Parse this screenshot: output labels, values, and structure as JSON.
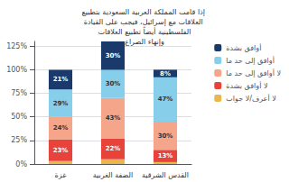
{
  "chart_data": {
    "type": "bar",
    "title": "إذا قامت المملكة العربية السعودية بتطبيع العلاقات مع إسرائيل، فيجب على القيادة الفلسطينية أيضاً تطبيع العلاقات\nوإنهاء الصراع",
    "categories": [
      "غزة",
      "الضفة الغربية",
      "القدس الشرقية"
    ],
    "series": [
      {
        "name": "لا أعرف/لا جواب",
        "color": "#E8B84B",
        "values": [
          3,
          5,
          2
        ]
      },
      {
        "name": "لا أوافق بشدة",
        "color": "#E8433A",
        "values": [
          23,
          22,
          13
        ],
        "value_labels": [
          "23%",
          "22%",
          "13%"
        ]
      },
      {
        "name": "لا أوافق إلى حد ما",
        "color": "#F4A58A",
        "values": [
          24,
          43,
          30
        ],
        "value_labels": [
          "24%",
          "43%",
          "30%"
        ]
      },
      {
        "name": "أوافق إلى حد ما",
        "color": "#87CEEB",
        "values": [
          29,
          30,
          47
        ],
        "value_labels": [
          "29%",
          "30%",
          "47%"
        ]
      },
      {
        "name": "أوافق بشدة",
        "color": "#1A3A6B",
        "values": [
          21,
          30,
          8
        ],
        "value_labels": [
          "21%",
          "30%",
          "8%"
        ]
      }
    ],
    "legend_order": [
      "أوافق بشدة",
      "أوافق إلى حد ما",
      "لا أوافق إلى حد ما",
      "لا أوافق بشدة",
      "لا أعرف/لا جواب"
    ],
    "stacked": true,
    "data_labels": true,
    "ylim": [
      0,
      130
    ],
    "yticks": [
      {
        "value": 0,
        "label": "0%"
      },
      {
        "value": 25,
        "label": "25%"
      },
      {
        "value": 50,
        "label": "50%"
      },
      {
        "value": 75,
        "label": "75%"
      },
      {
        "value": 100,
        "label": "100%"
      },
      {
        "value": 125,
        "label": "125%"
      }
    ],
    "grid": true,
    "legend": "right"
  }
}
